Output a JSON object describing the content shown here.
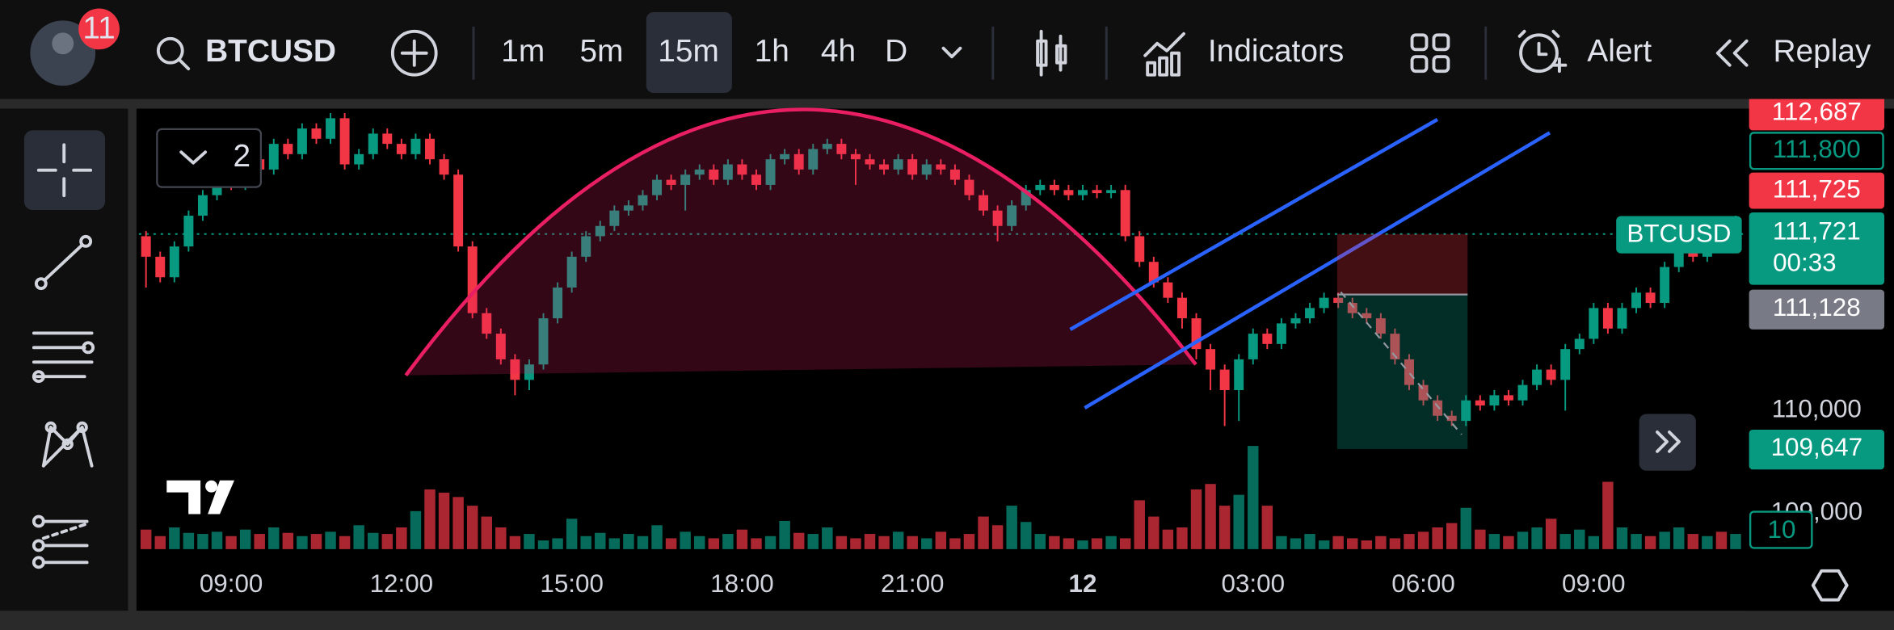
{
  "toolbar": {
    "notifications": "11",
    "symbol": "BTCUSD",
    "intervals": [
      "1m",
      "5m",
      "15m",
      "1h",
      "4h",
      "D"
    ],
    "indicators": "Indicators",
    "alert": "Alert",
    "replay": "Replay"
  },
  "layout_badge": "2",
  "price_tags": {
    "top": "112,687",
    "outlined": "111,800",
    "red": "111,725",
    "last": "111,721",
    "countdown": "00:33",
    "gray": "111,128",
    "green": "109,647",
    "volume": "10"
  },
  "chart_data": {
    "type": "candlestick",
    "symbol_tag": "BTCUSD",
    "up_color": "#089981",
    "down_color": "#f23645",
    "ylim": [
      108650,
      112920
    ],
    "yticks": [
      {
        "value": 110000,
        "label": "110,000"
      },
      {
        "value": 109000,
        "label": "109,000"
      }
    ],
    "last_price": 111721,
    "x_labels": [
      "09:00",
      "12:00",
      "15:00",
      "18:00",
      "21:00",
      "12",
      "03:00",
      "06:00",
      "09:00"
    ],
    "candles": [
      [
        111700,
        111750,
        111200,
        111500
      ],
      [
        111500,
        111550,
        111250,
        111300
      ],
      [
        111300,
        111650,
        111250,
        111600
      ],
      [
        111600,
        111950,
        111550,
        111900
      ],
      [
        111900,
        112150,
        111850,
        112100
      ],
      [
        112100,
        112350,
        112050,
        112300
      ],
      [
        112300,
        112350,
        112150,
        112200
      ],
      [
        112200,
        112500,
        112150,
        112450
      ],
      [
        112450,
        112500,
        112300,
        112350
      ],
      [
        112350,
        112650,
        112300,
        112600
      ],
      [
        112600,
        112650,
        112450,
        112500
      ],
      [
        112500,
        112800,
        112450,
        112750
      ],
      [
        112750,
        112800,
        112600,
        112650
      ],
      [
        112650,
        112900,
        112600,
        112850
      ],
      [
        112850,
        112900,
        112350,
        112400
      ],
      [
        112400,
        112550,
        112350,
        112500
      ],
      [
        112500,
        112750,
        112450,
        112700
      ],
      [
        112700,
        112750,
        112550,
        112600
      ],
      [
        112600,
        112650,
        112450,
        112500
      ],
      [
        112500,
        112700,
        112450,
        112650
      ],
      [
        112650,
        112700,
        112400,
        112450
      ],
      [
        112450,
        112500,
        112250,
        112300
      ],
      [
        112300,
        112350,
        111550,
        111600
      ],
      [
        111600,
        111650,
        110900,
        110950
      ],
      [
        110950,
        111000,
        110700,
        110750
      ],
      [
        110750,
        110800,
        110450,
        110500
      ],
      [
        110500,
        110550,
        110150,
        110300
      ],
      [
        110300,
        110500,
        110200,
        110450
      ],
      [
        110450,
        110950,
        110400,
        110900
      ],
      [
        110900,
        111250,
        110850,
        111200
      ],
      [
        111200,
        111550,
        111150,
        111500
      ],
      [
        111500,
        111750,
        111450,
        111700
      ],
      [
        111700,
        111850,
        111650,
        111800
      ],
      [
        111800,
        112000,
        111750,
        111950
      ],
      [
        111950,
        112050,
        111900,
        112000
      ],
      [
        112000,
        112150,
        111950,
        112100
      ],
      [
        112100,
        112300,
        112050,
        112250
      ],
      [
        112250,
        112300,
        112150,
        112200
      ],
      [
        112200,
        112350,
        111950,
        112300
      ],
      [
        112300,
        112400,
        112250,
        112350
      ],
      [
        112350,
        112400,
        112200,
        112250
      ],
      [
        112250,
        112450,
        112200,
        112400
      ],
      [
        112400,
        112450,
        112250,
        112300
      ],
      [
        112300,
        112350,
        112150,
        112200
      ],
      [
        112200,
        112500,
        112150,
        112450
      ],
      [
        112450,
        112550,
        112400,
        112500
      ],
      [
        112500,
        112550,
        112300,
        112350
      ],
      [
        112350,
        112600,
        112300,
        112550
      ],
      [
        112550,
        112650,
        112500,
        112600
      ],
      [
        112600,
        112650,
        112450,
        112500
      ],
      [
        112500,
        112550,
        112200,
        112450
      ],
      [
        112450,
        112500,
        112350,
        112400
      ],
      [
        112400,
        112450,
        112300,
        112350
      ],
      [
        112350,
        112500,
        112300,
        112450
      ],
      [
        112450,
        112500,
        112250,
        112300
      ],
      [
        112300,
        112450,
        112250,
        112400
      ],
      [
        112400,
        112450,
        112300,
        112350
      ],
      [
        112350,
        112400,
        112200,
        112250
      ],
      [
        112250,
        112300,
        112050,
        112100
      ],
      [
        112100,
        112150,
        111900,
        111950
      ],
      [
        111950,
        112000,
        111650,
        111800
      ],
      [
        111800,
        112050,
        111750,
        112000
      ],
      [
        112000,
        112200,
        111950,
        112150
      ],
      [
        112150,
        112250,
        112100,
        112200
      ],
      [
        112200,
        112250,
        112100,
        112150
      ],
      [
        112150,
        112200,
        112050,
        112100
      ],
      [
        112100,
        112200,
        112050,
        112150
      ],
      [
        112150,
        112200,
        112070,
        112120
      ],
      [
        112120,
        112200,
        112070,
        112150
      ],
      [
        112150,
        112200,
        111650,
        111700
      ],
      [
        111700,
        111750,
        111400,
        111450
      ],
      [
        111450,
        111500,
        111200,
        111250
      ],
      [
        111250,
        111300,
        111050,
        111100
      ],
      [
        111100,
        111150,
        110800,
        110900
      ],
      [
        110900,
        110950,
        110500,
        110600
      ],
      [
        110600,
        110650,
        110200,
        110400
      ],
      [
        110400,
        110450,
        109850,
        110200
      ],
      [
        110200,
        110550,
        109900,
        110500
      ],
      [
        110500,
        110800,
        110450,
        110750
      ],
      [
        110750,
        110800,
        110600,
        110650
      ],
      [
        110650,
        110900,
        110600,
        110850
      ],
      [
        110850,
        110950,
        110800,
        110900
      ],
      [
        110900,
        111050,
        110850,
        111000
      ],
      [
        111000,
        111150,
        110950,
        111100
      ],
      [
        111100,
        111150,
        111000,
        111050
      ],
      [
        111050,
        111100,
        110900,
        110950
      ],
      [
        110950,
        111000,
        110850,
        110900
      ],
      [
        110900,
        110950,
        110700,
        110750
      ],
      [
        110750,
        110800,
        110450,
        110500
      ],
      [
        110500,
        110550,
        110200,
        110250
      ],
      [
        110250,
        110300,
        110050,
        110100
      ],
      [
        110100,
        110150,
        109900,
        109950
      ],
      [
        109950,
        110000,
        109850,
        109900
      ],
      [
        109900,
        110150,
        109850,
        110100
      ],
      [
        110100,
        110150,
        110000,
        110050
      ],
      [
        110050,
        110200,
        110000,
        110150
      ],
      [
        110150,
        110200,
        110050,
        110100
      ],
      [
        110100,
        110300,
        110050,
        110250
      ],
      [
        110250,
        110450,
        110200,
        110400
      ],
      [
        110400,
        110450,
        110250,
        110300
      ],
      [
        110300,
        110650,
        110000,
        110600
      ],
      [
        110600,
        110750,
        110550,
        110700
      ],
      [
        110700,
        111050,
        110650,
        111000
      ],
      [
        111000,
        111050,
        110750,
        110800
      ],
      [
        110800,
        111050,
        110750,
        111000
      ],
      [
        111000,
        111200,
        110950,
        111150
      ],
      [
        111150,
        111200,
        111000,
        111050
      ],
      [
        111050,
        111450,
        111000,
        111400
      ],
      [
        111400,
        111600,
        111350,
        111550
      ],
      [
        111550,
        111600,
        111450,
        111500
      ],
      [
        111500,
        111750,
        111450,
        111700
      ],
      [
        111700,
        111750,
        111600,
        111650
      ],
      [
        111650,
        111900,
        111600,
        111720
      ]
    ],
    "volume": [
      18,
      12,
      20,
      15,
      14,
      16,
      12,
      18,
      14,
      20,
      15,
      12,
      14,
      16,
      12,
      22,
      15,
      14,
      20,
      35,
      55,
      52,
      48,
      40,
      30,
      20,
      12,
      14,
      8,
      10,
      28,
      12,
      15,
      10,
      14,
      12,
      22,
      10,
      16,
      12,
      10,
      14,
      18,
      10,
      12,
      26,
      15,
      14,
      20,
      12,
      10,
      14,
      12,
      16,
      12,
      10,
      16,
      10,
      14,
      30,
      22,
      40,
      25,
      14,
      12,
      10,
      8,
      10,
      12,
      10,
      45,
      30,
      18,
      20,
      55,
      60,
      40,
      50,
      95,
      40,
      12,
      10,
      14,
      8,
      12,
      10,
      8,
      12,
      10,
      14,
      16,
      20,
      24,
      38,
      18,
      14,
      12,
      16,
      20,
      28,
      14,
      18,
      12,
      62,
      20,
      14,
      12,
      16,
      20,
      14,
      12,
      16,
      14
    ]
  }
}
